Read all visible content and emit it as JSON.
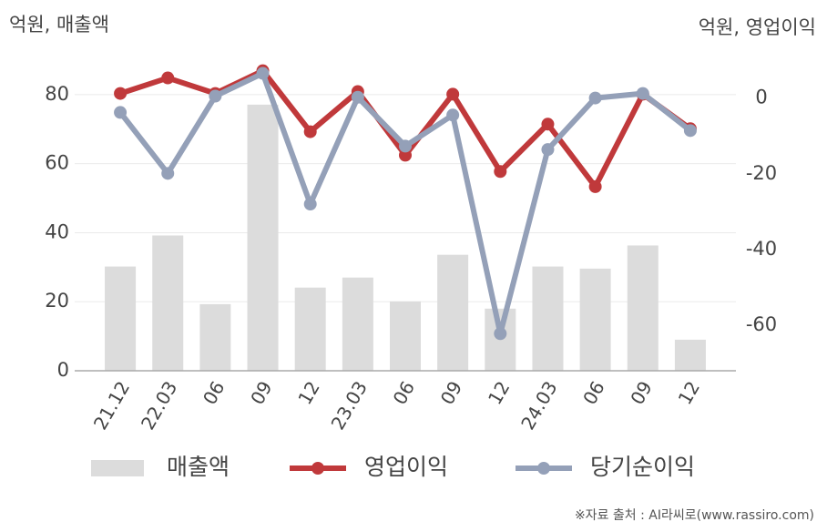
{
  "chart_data": {
    "type": "bar-line",
    "y_label": "억원, 매출액",
    "y2_label": "억원, 영업이익",
    "source": "※자료 출처 : AI라씨로(www.rassiro.com)",
    "categories": [
      "21.12",
      "22.03",
      "06",
      "09",
      "12",
      "23.03",
      "06",
      "09",
      "12",
      "24.03",
      "06",
      "09",
      "12"
    ],
    "series": [
      {
        "name": "매출액",
        "type": "bar",
        "axis": "y",
        "color": "#dcdcdc",
        "values": [
          30.2,
          39.2,
          19.3,
          77.1,
          24.1,
          27,
          20.1,
          33.6,
          18,
          30.2,
          29.6,
          36.3,
          9
        ]
      },
      {
        "name": "영업이익",
        "type": "line",
        "axis": "y2",
        "color": "#c0393b",
        "values": [
          1.2,
          5.3,
          1.2,
          7.2,
          -8.9,
          1.7,
          -15.1,
          1.0,
          -19.4,
          -6.9,
          -23.4,
          1.0,
          -8.1
        ]
      },
      {
        "name": "당기순이익",
        "type": "line",
        "axis": "y2",
        "color": "#94a0b8",
        "values": [
          -3.8,
          -19.9,
          0.5,
          6.5,
          -28,
          0.2,
          -12.7,
          -4.5,
          -62.2,
          -13.6,
          0,
          1.2,
          -8.6
        ]
      }
    ],
    "ylim": [
      0,
      90
    ],
    "yticks": [
      0,
      20,
      40,
      60,
      80
    ],
    "y2lim": [
      -72,
      10
    ],
    "y2ticks": [
      0,
      -20,
      -40,
      -60
    ],
    "grid": true,
    "legend": "bottom"
  }
}
